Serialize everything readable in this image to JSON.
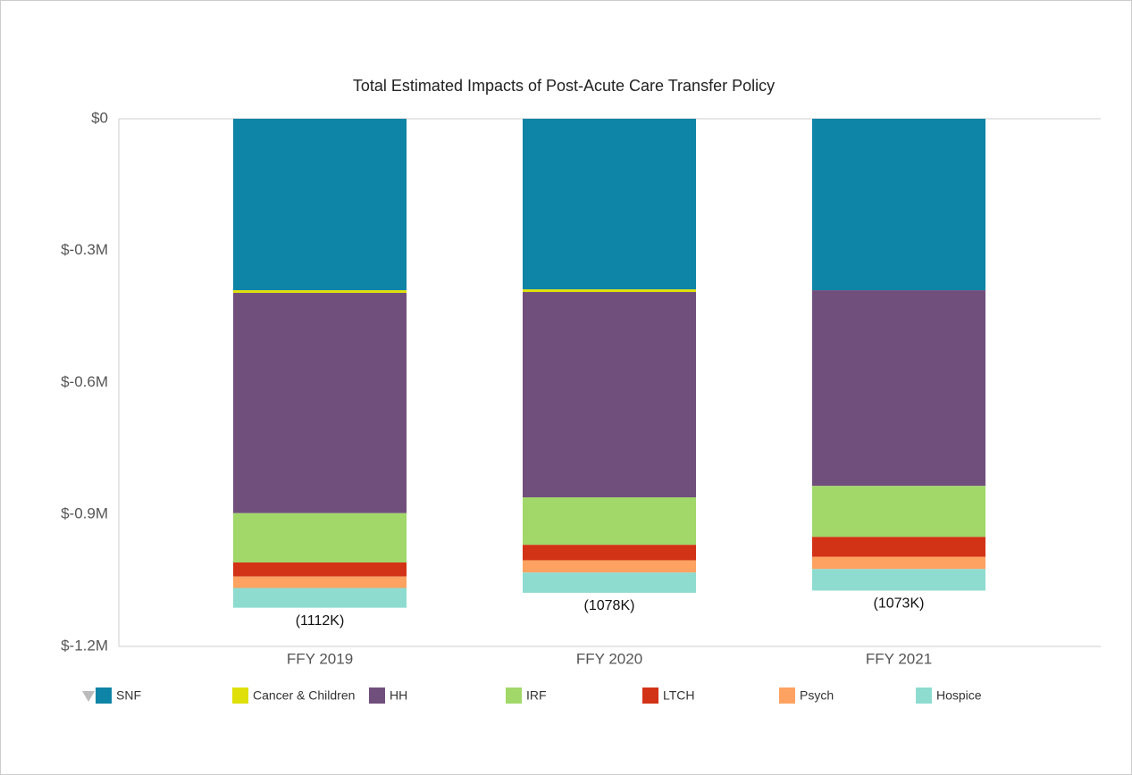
{
  "chart_data": {
    "type": "stacked_bar",
    "title": "Total Estimated Impacts of Post-Acute Care Transfer Policy",
    "categories": [
      "FFY 2019",
      "FFY 2020",
      "FFY 2021"
    ],
    "series": [
      {
        "name": "SNF",
        "color": "#0e84a6",
        "values": [
          -390000,
          -388000,
          -390000
        ]
      },
      {
        "name": "Cancer & Children",
        "color": "#dfe00a",
        "values": [
          -6000,
          -6000,
          0
        ]
      },
      {
        "name": "HH",
        "color": "#714f7c",
        "values": [
          -501000,
          -467000,
          -445000
        ]
      },
      {
        "name": "IRF",
        "color": "#a1d869",
        "values": [
          -112000,
          -108000,
          -116000
        ]
      },
      {
        "name": "LTCH",
        "color": "#d23216",
        "values": [
          -32000,
          -35000,
          -45000
        ]
      },
      {
        "name": "Psych",
        "color": "#fea261",
        "values": [
          -26000,
          -28000,
          -28000
        ]
      },
      {
        "name": "Hospice",
        "color": "#8edcd0",
        "values": [
          -45000,
          -46000,
          -49000
        ]
      }
    ],
    "totals": [
      -1112000,
      -1078000,
      -1073000
    ],
    "total_labels": [
      "(1112K)",
      "(1078K)",
      "(1073K)"
    ],
    "ylim": [
      -1200000,
      0
    ],
    "yticks": [
      {
        "value": 0,
        "label": "$0"
      },
      {
        "value": -300000,
        "label": "$-0.3M"
      },
      {
        "value": -600000,
        "label": "$-0.6M"
      },
      {
        "value": -900000,
        "label": "$-0.9M"
      },
      {
        "value": -1200000,
        "label": "$-1.2M"
      }
    ]
  }
}
